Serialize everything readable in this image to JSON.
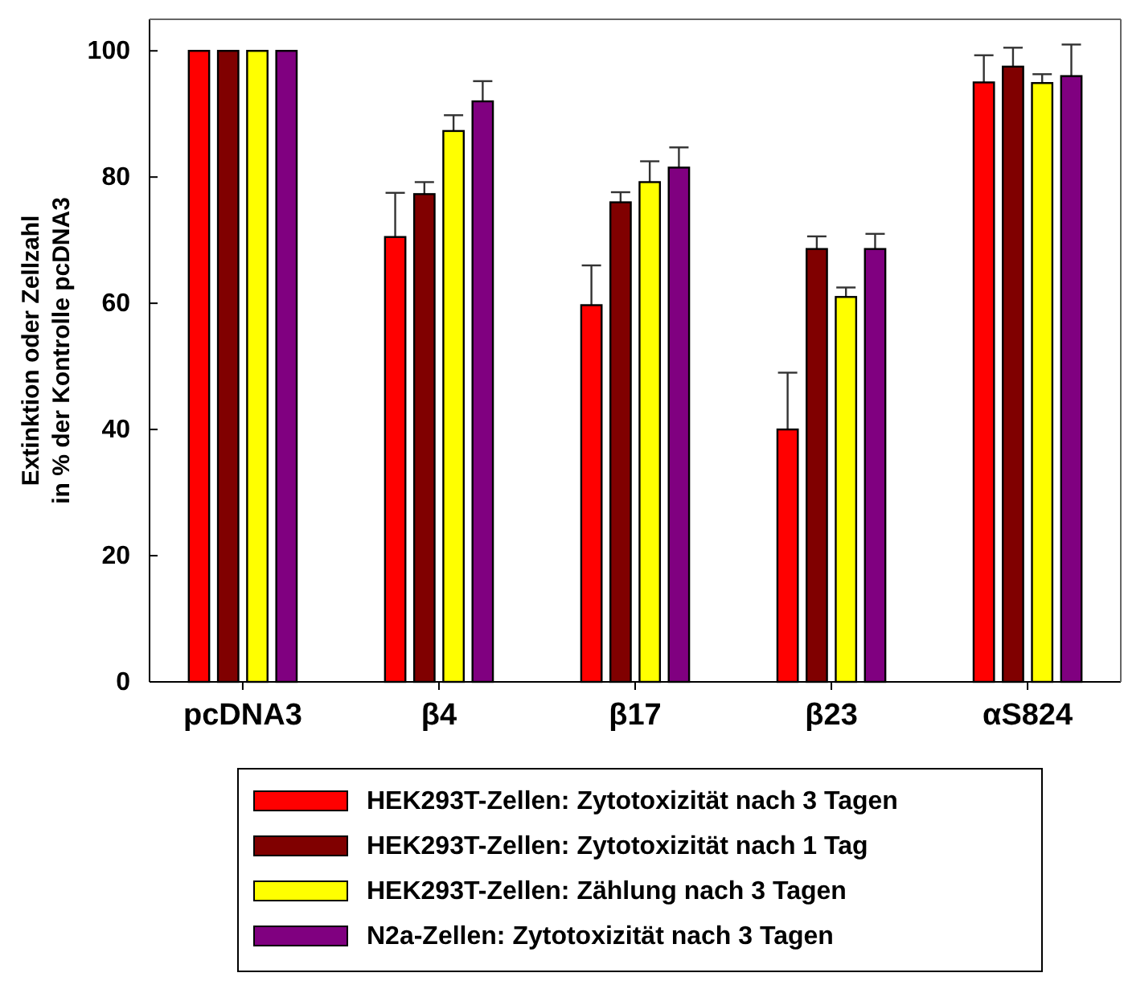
{
  "chart_data": {
    "type": "bar",
    "ylabel": "Extinktion oder Zellzahl\nin % der Kontrolle pcDNA3",
    "categories": [
      "pcDNA3",
      "β4",
      "β17",
      "β23",
      "αS824"
    ],
    "series": [
      {
        "name": "HEK293T-Zellen: Zytotoxizität nach 3 Tagen",
        "color": "#ff0000",
        "values": [
          100,
          70.5,
          59.7,
          40,
          95
        ],
        "errors": [
          null,
          [
            70.5,
            77.5
          ],
          [
            59.7,
            66
          ],
          [
            40,
            49
          ],
          [
            95,
            99.3
          ]
        ]
      },
      {
        "name": "HEK293T-Zellen: Zytotoxizität nach 1 Tag",
        "color": "#800000",
        "values": [
          100,
          77.3,
          76,
          68.6,
          97.5
        ],
        "errors": [
          null,
          [
            77.3,
            79.2
          ],
          [
            76,
            77.6
          ],
          [
            68.6,
            70.6
          ],
          [
            97.5,
            100.5
          ]
        ]
      },
      {
        "name": "HEK293T-Zellen: Zählung nach 3 Tagen",
        "color": "#ffff00",
        "values": [
          100,
          87.3,
          79.2,
          61,
          94.9
        ],
        "errors": [
          null,
          [
            87.3,
            89.8
          ],
          [
            79.2,
            82.5
          ],
          [
            61,
            62.5
          ],
          [
            94.9,
            96.3
          ]
        ]
      },
      {
        "name": "N2a-Zellen: Zytotoxizität nach 3 Tagen",
        "color": "#800080",
        "values": [
          100,
          92,
          81.5,
          68.6,
          96
        ],
        "errors": [
          null,
          [
            92,
            95.2
          ],
          [
            81.5,
            84.7
          ],
          [
            68.6,
            71
          ],
          [
            96,
            101
          ]
        ]
      }
    ],
    "ylim": [
      0,
      105
    ],
    "yticks": [
      0,
      20,
      40,
      60,
      80,
      100
    ],
    "grid": false,
    "legend": "bottom"
  }
}
